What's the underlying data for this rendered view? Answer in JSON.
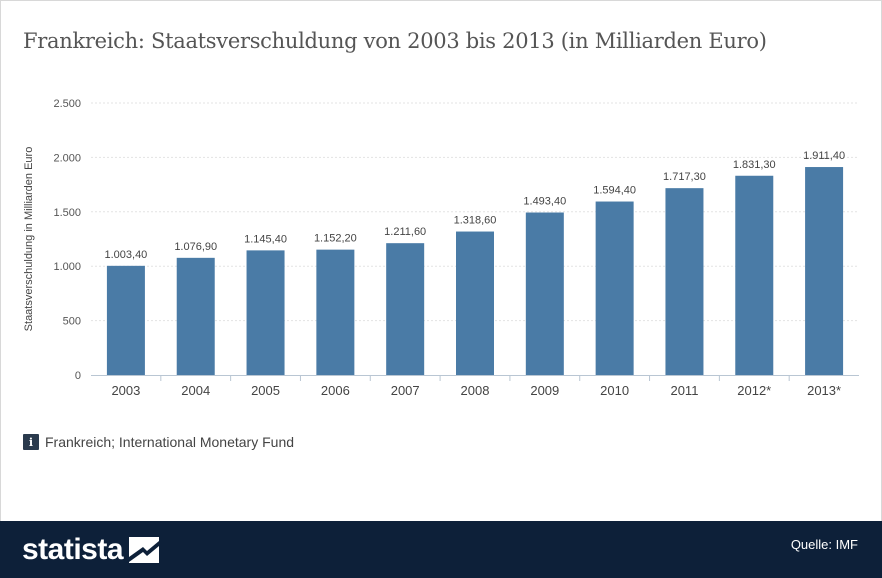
{
  "title": "Frankreich: Staatsverschuldung von 2003 bis 2013 (in Milliarden Euro)",
  "source_note": "Frankreich; International Monetary Fund",
  "info_icon_glyph": "i",
  "footer": {
    "logo_text": "statista",
    "source": "Quelle: IMF"
  },
  "colors": {
    "bar": "#4a7ba6",
    "footer_bg": "#0d2039",
    "grid": "#e3e3e3"
  },
  "chart_data": {
    "type": "bar",
    "title": "Frankreich: Staatsverschuldung von 2003 bis 2013 (in Milliarden Euro)",
    "xlabel": "",
    "ylabel": "Staatsverschuldung in Milliarden Euro",
    "ylim": [
      0,
      2500
    ],
    "yticks": [
      0,
      500,
      1000,
      1500,
      2000,
      2500
    ],
    "ytick_labels": [
      "0",
      "500",
      "1.000",
      "1.500",
      "2.000",
      "2.500"
    ],
    "categories": [
      "2003",
      "2004",
      "2005",
      "2006",
      "2007",
      "2008",
      "2009",
      "2010",
      "2011",
      "2012*",
      "2013*"
    ],
    "values": [
      1003.4,
      1076.9,
      1145.4,
      1152.2,
      1211.6,
      1318.6,
      1493.4,
      1594.4,
      1717.3,
      1831.3,
      1911.4
    ],
    "value_labels": [
      "1.003,40",
      "1.076,90",
      "1.145,40",
      "1.152,20",
      "1.211,60",
      "1.318,60",
      "1.493,40",
      "1.594,40",
      "1.717,30",
      "1.831,30",
      "1.911,40"
    ],
    "grid": true
  }
}
